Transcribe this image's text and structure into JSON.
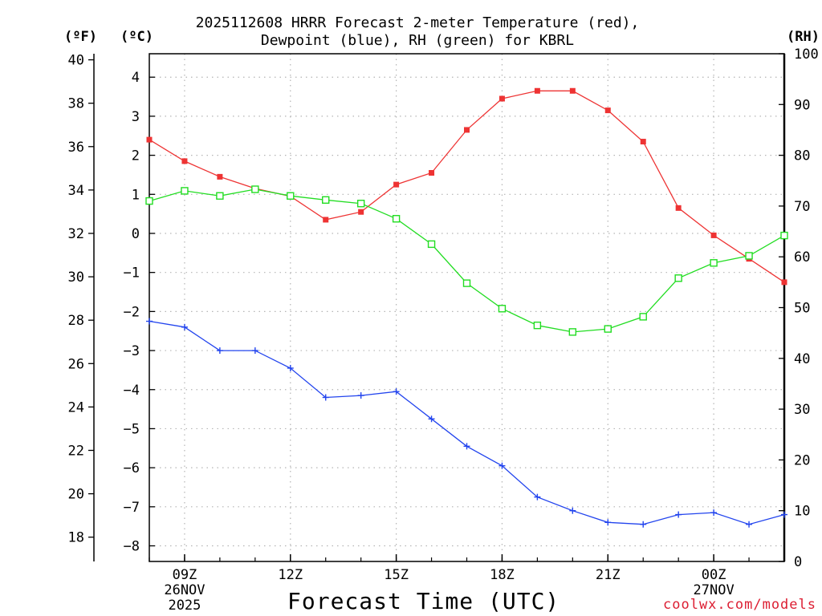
{
  "chart_data": {
    "type": "line",
    "title_line1": "2025112608 HRRR Forecast 2-meter Temperature (red),",
    "title_line2": "Dewpoint (blue), RH (green) for KBRL",
    "left_outer_unit": "(ºF)",
    "left_inner_unit": "(ºC)",
    "right_unit": "(RH)",
    "xlabel": "Forecast Time (UTC)",
    "credit": "coolwx.com/models",
    "x_hours": [
      8,
      9,
      10,
      11,
      12,
      13,
      14,
      15,
      16,
      17,
      18,
      19,
      20,
      21,
      22,
      23,
      24,
      25,
      26
    ],
    "x_ticks": [
      {
        "hour": 9,
        "label": "09Z",
        "date": "26NOV",
        "year": "2025"
      },
      {
        "hour": 12,
        "label": "12Z"
      },
      {
        "hour": 15,
        "label": "15Z"
      },
      {
        "hour": 18,
        "label": "18Z"
      },
      {
        "hour": 21,
        "label": "21Z"
      },
      {
        "hour": 24,
        "label": "00Z",
        "date": "27NOV"
      }
    ],
    "celsius_ylim": [
      -8.4,
      4.6
    ],
    "celsius_ticks": [
      "−8",
      "−7",
      "−6",
      "−5",
      "−4",
      "−3",
      "−2",
      "−1",
      "0",
      "1",
      "2",
      "3",
      "4"
    ],
    "fahrenheit_ticks": [
      "18",
      "20",
      "22",
      "24",
      "26",
      "28",
      "30",
      "32",
      "34",
      "36",
      "38",
      "40"
    ],
    "rh_ylim": [
      0,
      100
    ],
    "rh_ticks": [
      "0",
      "10",
      "20",
      "30",
      "40",
      "50",
      "60",
      "70",
      "80",
      "90",
      "100"
    ],
    "series": [
      {
        "name": "Temperature",
        "unit": "C",
        "color": "#ee3333",
        "marker": "filled-square",
        "values": [
          2.4,
          1.85,
          1.45,
          1.15,
          0.95,
          0.35,
          0.55,
          1.25,
          1.55,
          2.65,
          3.45,
          3.65,
          3.65,
          3.15,
          2.35,
          0.65,
          -0.05,
          -0.65,
          -1.25
        ]
      },
      {
        "name": "Dewpoint",
        "unit": "C",
        "color": "#2244ee",
        "marker": "plus",
        "values": [
          -2.25,
          -2.4,
          -3.0,
          -3.0,
          -3.45,
          -4.2,
          -4.15,
          -4.05,
          -4.75,
          -5.45,
          -5.95,
          -6.75,
          -7.1,
          -7.4,
          -7.45,
          -7.2,
          -7.15,
          -7.45,
          -7.2
        ]
      },
      {
        "name": "RH",
        "unit": "%",
        "color": "#22dd22",
        "marker": "open-square",
        "values": [
          71,
          73,
          72,
          73.3,
          72,
          71.2,
          70.5,
          67.5,
          62.5,
          54.8,
          49.8,
          46.5,
          45.2,
          45.8,
          48.2,
          55.8,
          58.8,
          60.2,
          64.2
        ]
      }
    ]
  }
}
